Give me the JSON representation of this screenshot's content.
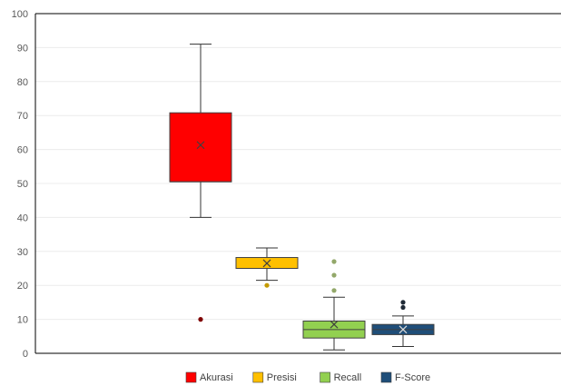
{
  "chart_data": {
    "type": "box",
    "y_ticks": [
      "0",
      "10",
      "20",
      "30",
      "40",
      "50",
      "60",
      "70",
      "80",
      "90",
      "100"
    ],
    "ylim": [
      0,
      100
    ],
    "grid": true,
    "legend_position": "bottom",
    "series": [
      {
        "name": "Akurasi",
        "color": "#ff0000",
        "whisker_low": 40,
        "q1": 50.5,
        "median": 50.5,
        "q3": 70.8,
        "whisker_high": 91,
        "mean": 61.3,
        "outliers": [
          10
        ]
      },
      {
        "name": "Presisi",
        "color": "#ffc000",
        "whisker_low": 21.5,
        "q1": 25,
        "median": 25,
        "q3": 28.2,
        "whisker_high": 31,
        "mean": 26.5,
        "outliers": [
          20
        ]
      },
      {
        "name": "Recall",
        "color": "#92d050",
        "whisker_low": 1,
        "q1": 4.5,
        "median": 7,
        "q3": 9.5,
        "whisker_high": 16.5,
        "mean": 8.5,
        "outliers": [
          18.5,
          23,
          27
        ]
      },
      {
        "name": "F-Score",
        "color": "#1f4e79",
        "whisker_low": 2,
        "q1": 5.5,
        "median": 7,
        "q3": 8.5,
        "whisker_high": 11,
        "mean": 7,
        "outliers": [
          13.5,
          15
        ]
      }
    ]
  }
}
